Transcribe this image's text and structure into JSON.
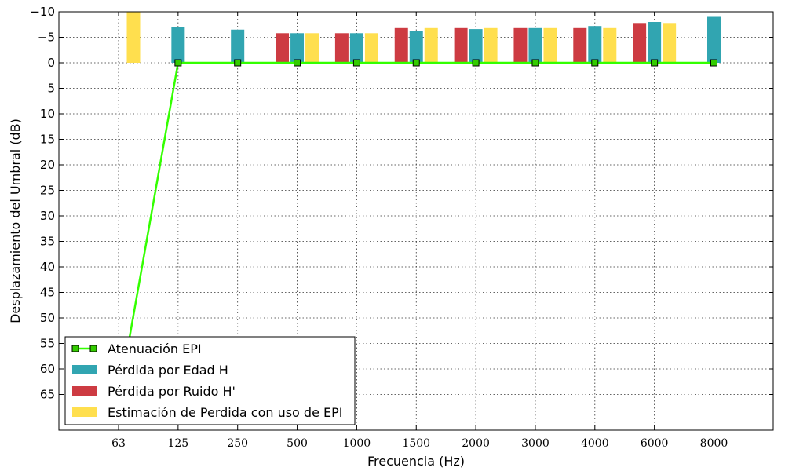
{
  "chart_data": {
    "type": "bar",
    "title": "",
    "xlabel": "Frecuencia (Hz)",
    "ylabel": "Desplazamiento del Umbral (dB)",
    "categories": [
      "63",
      "125",
      "250",
      "500",
      "1000",
      "1500",
      "2000",
      "3000",
      "4000",
      "6000",
      "8000"
    ],
    "y_inverted": true,
    "ylim": [
      -10,
      72
    ],
    "yticks": [
      -10,
      -5,
      0,
      5,
      10,
      15,
      20,
      25,
      30,
      35,
      40,
      45,
      50,
      55,
      60,
      65
    ],
    "grid": true,
    "legend_position": "bottom-left",
    "series": [
      {
        "name": "Atenuación EPI",
        "kind": "line",
        "color": "#33ff00",
        "marker_color": "#33cc00",
        "values": [
          66,
          0,
          0,
          0,
          0,
          0,
          0,
          0,
          0,
          0,
          0
        ]
      },
      {
        "name": "Pérdida por Edad H",
        "kind": "bar",
        "color": "#31a5b1",
        "values": [
          null,
          -7,
          -6.5,
          -5.8,
          -5.8,
          -6.3,
          -6.6,
          -6.8,
          -7.2,
          -8,
          -9
        ]
      },
      {
        "name": "Pérdida por Ruido H'",
        "kind": "bar",
        "color": "#cd3b42",
        "values": [
          null,
          null,
          null,
          -5.8,
          -5.8,
          -6.8,
          -6.8,
          -6.8,
          -6.8,
          -7.8,
          null
        ]
      },
      {
        "name": "Estimación de Perdida con uso de EPI",
        "kind": "bar",
        "color": "#ffdf4e",
        "values": [
          -10,
          null,
          null,
          -5.8,
          -5.8,
          -6.8,
          -6.8,
          -6.8,
          -6.8,
          -7.8,
          null
        ]
      }
    ]
  }
}
